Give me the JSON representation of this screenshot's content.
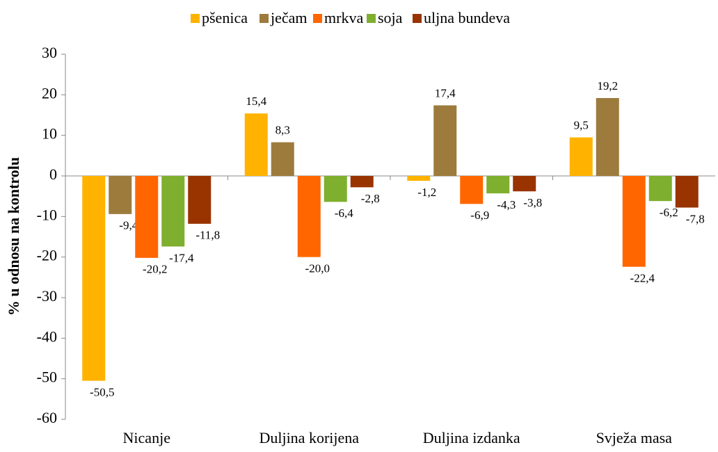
{
  "chart_data": {
    "type": "bar",
    "y_label": "% u odnosu na kontrolu",
    "categories": [
      "Nicanje",
      "Duljina korijena",
      "Duljina izdanka",
      "Svježa masa"
    ],
    "series": [
      {
        "name": "pšenica",
        "color": "#FFB300",
        "values": [
          -50.5,
          15.4,
          -1.2,
          9.5
        ],
        "value_labels": [
          "-50,5",
          "15,4",
          "-1,2",
          "9,5"
        ]
      },
      {
        "name": "ječam",
        "color": "#9C7B3C",
        "values": [
          -9.4,
          8.3,
          17.4,
          19.2
        ],
        "value_labels": [
          "-9,4",
          "8,3",
          "17,4",
          "19,2"
        ]
      },
      {
        "name": "mrkva",
        "color": "#FF6600",
        "values": [
          -20.2,
          -20.0,
          -6.9,
          -22.4
        ],
        "value_labels": [
          "-20,2",
          "-20,0",
          "-6,9",
          "-22,4"
        ]
      },
      {
        "name": "soja",
        "color": "#7FAF2F",
        "values": [
          -17.4,
          -6.4,
          -4.3,
          -6.2
        ],
        "value_labels": [
          "-17,4",
          "-6,4",
          "-4,3",
          "-6,2"
        ]
      },
      {
        "name": "uljna bundeva",
        "color": "#993300",
        "values": [
          -11.8,
          -2.8,
          -3.8,
          -7.8
        ],
        "value_labels": [
          "-11,8",
          "-2,8",
          "-3,8",
          "-7,8"
        ]
      }
    ],
    "ylim": [
      -60,
      30
    ],
    "yticks": [
      -60,
      -50,
      -40,
      -30,
      -20,
      -10,
      0,
      10,
      20,
      30
    ],
    "grid": false
  }
}
